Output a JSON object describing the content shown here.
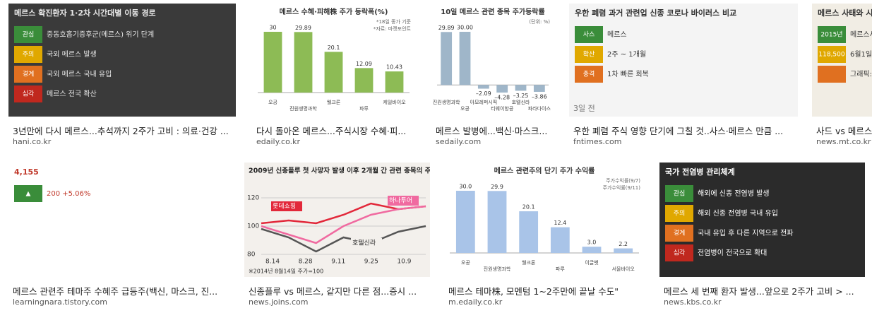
{
  "results": [
    {
      "title": "3년만에 다시 메르스...추석까지 2주가 고비 : 의료·건강 ...",
      "source": "hani.co.kr",
      "thumb": {
        "kind": "panel",
        "bg": "#3a3a3a",
        "color": "#e8e8e8",
        "heading": "메르스 확진환자 1·2차 시간대별 이동 경로",
        "rows": [
          {
            "level": "관심",
            "text": "중동호흡기증후군(메르스) 위기 단계"
          },
          {
            "level": "주의",
            "text": "국외 메르스 발생"
          },
          {
            "level": "경계",
            "text": "국외 메르스 국내 유입"
          },
          {
            "level": "심각",
            "text": "메르스 전국 확산"
          }
        ]
      }
    },
    {
      "title": "다시 돌아온 메르스...주식시장 수혜·피...",
      "source": "edaily.co.kr",
      "thumb": {
        "kind": "bars",
        "bg": "#ffffff",
        "color": "#8dbb55",
        "heading": "메르스 수혜·피해株 주가 등락폭(%)",
        "notes": [
          "*18일 종가 기준",
          "*자료: 마켓포인트"
        ],
        "categories": [
          "오공",
          "진원생명과학",
          "웰크론",
          "파루",
          "케일바이오"
        ],
        "values": [
          30,
          29.89,
          20.1,
          12.09,
          10.43
        ]
      }
    },
    {
      "title": "메르스 발병에...백신·마스크...",
      "source": "sedaily.com",
      "thumb": {
        "kind": "bars",
        "bg": "#ffffff",
        "color": "#9fb6c9",
        "heading": "10일 메르스 관련 종목 주가등락률",
        "notes": [
          "(단위: %)"
        ],
        "categories": [
          "진원생명과학",
          "오공",
          "아모레퍼시픽",
          "티웨이항공",
          "호텔신라",
          "파라다이스"
        ],
        "values": [
          29.89,
          30.0,
          -2.09,
          -4.28,
          -3.25,
          -3.86
        ],
        "value_labels": [
          "29.89",
          "30.00",
          "–2.09",
          "–4.28",
          "–3.25",
          "–3.86"
        ]
      }
    },
    {
      "title": "우한 폐렴 주식 영향 단기에 그칠 것..사스·메르스 만큼 ...",
      "source": "fntimes.com",
      "age": "3일 전",
      "thumb": {
        "kind": "panel",
        "bg": "#f4f4f4",
        "color": "#333333",
        "heading": "우한 폐렴 과거 관련업 신종 코로나 바이러스 비교",
        "rows": [
          {
            "level": "사스",
            "text": "메르스"
          },
          {
            "level": "확산",
            "text": "2주 ~ 1개월"
          },
          {
            "level": "충격",
            "text": "1차 빠른 회복"
          }
        ]
      }
    },
    {
      "title": "사드 vs 메르스...",
      "source": "news.mt.co.kr",
      "thumb": {
        "kind": "panel",
        "bg": "#f1ede4",
        "color": "#333333",
        "heading": "메르스 사태와 시",
        "rows": [
          {
            "level": "2015년",
            "text": "메르스사태"
          },
          {
            "level": "118,500",
            "text": "6월1일"
          },
          {
            "level": "",
            "text": "그래픽: 유정수 디자이너"
          }
        ]
      }
    },
    {
      "title": "메르스 관련주 테마주 수혜주 급등주(백신, 마스크, 진...",
      "source": "learningnara.tistory.com",
      "thumb": {
        "kind": "panel",
        "bg": "#ffffff",
        "color": "#c0392b",
        "heading": "4,155",
        "rows": [
          {
            "level": "▲",
            "text": "200 +5.06%"
          }
        ]
      }
    },
    {
      "title": "신종플루 vs 메르스, 같지만 다른 점...증시 ...",
      "source": "news.joins.com",
      "thumb": {
        "kind": "lines",
        "bg": "#f3f0ec",
        "color": "#222222",
        "heading": "2009년 신종플루 첫 사망자 발생 이후 2개월 간 관련 종목의 주가 흐름",
        "series": [
          "롯데쇼핑",
          "하나투어",
          "호텔신라"
        ],
        "colors": [
          "#e2283a",
          "#f06aa0",
          "#555555"
        ],
        "categories": [
          "8.14",
          "8.28",
          "9.11",
          "9.25",
          "10.9"
        ],
        "yticks": [
          120,
          100,
          80
        ],
        "note": "※2014년 8월14일 주가=100"
      }
    },
    {
      "title": "메르스 테마株, 모멘텀 1~2주만에 끝날 수도\"",
      "source": "m.edaily.co.kr",
      "thumb": {
        "kind": "bars",
        "bg": "#ffffff",
        "color": "#a9c4e8",
        "heading": "메르스 관련주의 단기 주가 수익률",
        "notes": [
          "주가수익률(9/7)",
          "주가수익률(9/11)"
        ],
        "categories": [
          "오공",
          "진원생명과학",
          "웰크론",
          "파루",
          "이글벳",
          "서울바이오"
        ],
        "values": [
          30.0,
          29.9,
          20.1,
          12.4,
          3.0,
          2.2
        ],
        "value_labels": [
          "30.0",
          "29.9",
          "20.1",
          "12.4",
          "3.0",
          "2.2"
        ]
      }
    },
    {
      "title": "메르스 세 번째 환자 발생...앞으로 2주가 고비 > ...",
      "source": "news.kbs.co.kr",
      "thumb": {
        "kind": "panel",
        "bg": "#2b2b2b",
        "color": "#ffffff",
        "heading": "국가 전염병 관리체계",
        "rows": [
          {
            "level": "관심",
            "text": "해외에 신종 전염병 발생"
          },
          {
            "level": "주의",
            "text": "해외 신종 전염병 국내 유입"
          },
          {
            "level": "경계",
            "text": "국내 유입 후 다른 지역으로 전파"
          },
          {
            "level": "심각",
            "text": "전염병이 전국으로 확대"
          }
        ]
      }
    }
  ]
}
